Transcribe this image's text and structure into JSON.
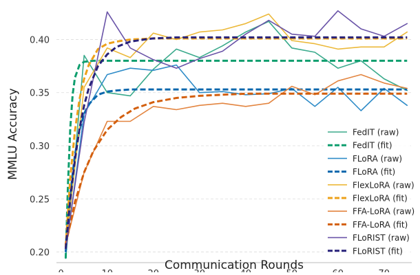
{
  "chart_data": {
    "type": "line",
    "title": "",
    "xlabel": "Communication Rounds",
    "ylabel": "MMLU Accuracy",
    "xlim": [
      -1,
      76
    ],
    "ylim": [
      0.19,
      0.432
    ],
    "xticks": [
      0,
      10,
      20,
      30,
      40,
      50,
      60,
      70
    ],
    "yticks": [
      0.2,
      0.25,
      0.3,
      0.35,
      0.4
    ],
    "grid": "horizontal",
    "legend_position": "bottom-right",
    "series": [
      {
        "name": "FedIT (raw)",
        "color": "#3aaa8c",
        "style": "solid",
        "x": [
          1,
          5,
          10,
          15,
          20,
          25,
          30,
          35,
          40,
          45,
          50,
          55,
          60,
          65,
          70,
          75
        ],
        "y": [
          0.194,
          0.385,
          0.35,
          0.347,
          0.372,
          0.391,
          0.383,
          0.394,
          0.407,
          0.417,
          0.392,
          0.388,
          0.373,
          0.38,
          0.363,
          0.352
        ]
      },
      {
        "name": "FedIT (fit)",
        "color": "#0f9e6e",
        "style": "dashed",
        "x": [
          1,
          1.5,
          2,
          2.5,
          3,
          4,
          5,
          7,
          10,
          20,
          30,
          40,
          50,
          60,
          70,
          75
        ],
        "y": [
          0.194,
          0.265,
          0.317,
          0.348,
          0.364,
          0.376,
          0.379,
          0.38,
          0.38,
          0.38,
          0.38,
          0.38,
          0.38,
          0.38,
          0.38,
          0.38
        ]
      },
      {
        "name": "FLoRA (raw)",
        "color": "#2f8cc8",
        "style": "solid",
        "x": [
          1,
          5,
          10,
          15,
          20,
          25,
          30,
          35,
          40,
          45,
          50,
          55,
          60,
          65,
          70,
          75
        ],
        "y": [
          0.2,
          0.33,
          0.367,
          0.373,
          0.371,
          0.376,
          0.35,
          0.351,
          0.348,
          0.349,
          0.354,
          0.337,
          0.355,
          0.333,
          0.354,
          0.338
        ]
      },
      {
        "name": "FLoRA (fit)",
        "color": "#0a67ad",
        "style": "dashed",
        "x": [
          1,
          2,
          3,
          4,
          5,
          6,
          8,
          10,
          12,
          15,
          20,
          30,
          40,
          50,
          60,
          70,
          75
        ],
        "y": [
          0.2,
          0.255,
          0.291,
          0.315,
          0.33,
          0.339,
          0.348,
          0.351,
          0.352,
          0.353,
          0.353,
          0.353,
          0.353,
          0.353,
          0.353,
          0.353,
          0.353
        ]
      },
      {
        "name": "FlexLoRA (raw)",
        "color": "#ecb93a",
        "style": "solid",
        "x": [
          1,
          5,
          10,
          15,
          20,
          25,
          30,
          35,
          40,
          45,
          50,
          55,
          60,
          65,
          70,
          75
        ],
        "y": [
          0.205,
          0.355,
          0.392,
          0.383,
          0.406,
          0.4,
          0.407,
          0.409,
          0.415,
          0.424,
          0.399,
          0.396,
          0.391,
          0.393,
          0.393,
          0.407
        ]
      },
      {
        "name": "FlexLoRA (fit)",
        "color": "#eda11a",
        "style": "dashed",
        "x": [
          1,
          2,
          3,
          4,
          5,
          6,
          8,
          10,
          12,
          15,
          20,
          25,
          30,
          40,
          50,
          60,
          70,
          75
        ],
        "y": [
          0.205,
          0.27,
          0.314,
          0.344,
          0.363,
          0.376,
          0.391,
          0.396,
          0.398,
          0.4,
          0.401,
          0.401,
          0.401,
          0.401,
          0.401,
          0.401,
          0.401,
          0.401
        ]
      },
      {
        "name": "FFA-LoRA (raw)",
        "color": "#e38540",
        "style": "solid",
        "x": [
          1,
          5,
          10,
          15,
          20,
          25,
          30,
          35,
          40,
          45,
          50,
          55,
          60,
          65,
          70,
          75
        ],
        "y": [
          0.207,
          0.275,
          0.323,
          0.323,
          0.337,
          0.334,
          0.338,
          0.34,
          0.337,
          0.34,
          0.356,
          0.348,
          0.361,
          0.367,
          0.359,
          0.354
        ]
      },
      {
        "name": "FFA-LoRA (fit)",
        "color": "#d35f0e",
        "style": "dashed",
        "x": [
          1,
          3,
          5,
          7,
          10,
          13,
          16,
          20,
          25,
          30,
          35,
          40,
          50,
          60,
          70,
          75
        ],
        "y": [
          0.207,
          0.247,
          0.275,
          0.295,
          0.315,
          0.327,
          0.335,
          0.341,
          0.345,
          0.347,
          0.348,
          0.349,
          0.349,
          0.349,
          0.349,
          0.349
        ]
      },
      {
        "name": "FLoRIST (raw)",
        "color": "#6a54a8",
        "style": "solid",
        "x": [
          1,
          5,
          10,
          15,
          20,
          25,
          30,
          35,
          40,
          45,
          50,
          55,
          60,
          65,
          70,
          75
        ],
        "y": [
          0.203,
          0.322,
          0.426,
          0.392,
          0.381,
          0.373,
          0.382,
          0.389,
          0.405,
          0.418,
          0.405,
          0.403,
          0.427,
          0.41,
          0.403,
          0.415
        ]
      },
      {
        "name": "FLoRIST (fit)",
        "color": "#28227a",
        "style": "dashed",
        "x": [
          1,
          2,
          3,
          4,
          5,
          6,
          8,
          10,
          12,
          15,
          18,
          20,
          25,
          30,
          40,
          50,
          60,
          70,
          75
        ],
        "y": [
          0.203,
          0.25,
          0.287,
          0.316,
          0.338,
          0.354,
          0.375,
          0.386,
          0.393,
          0.398,
          0.4,
          0.401,
          0.402,
          0.402,
          0.402,
          0.402,
          0.402,
          0.402,
          0.402
        ]
      }
    ]
  }
}
